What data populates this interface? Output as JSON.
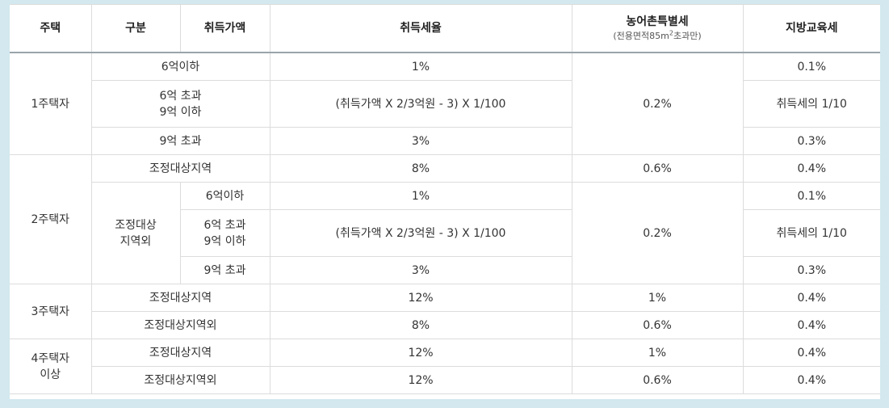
{
  "headers": {
    "house": "주택",
    "category": "구분",
    "price": "취득가액",
    "tax_rate": "취득세율",
    "rural_tax": "농어촌특별세",
    "rural_tax_note_pre": "(전용면적85m",
    "rural_tax_note_sup": "2",
    "rural_tax_note_post": "초과만)",
    "edu_tax": "지방교육세"
  },
  "rows": {
    "h1": {
      "label": "1주택자",
      "r1": {
        "range": "6억이하",
        "rate": "1%",
        "edu": "0.1%"
      },
      "r2": {
        "range_a": "6억 초과",
        "range_b": "9억 이하",
        "rate": "(취득가액 X 2/3억원 - 3) X 1/100",
        "edu": "취득세의 1/10"
      },
      "r3": {
        "range": "9억 초과",
        "rate": "3%",
        "edu": "0.3%"
      },
      "rural": "0.2%"
    },
    "h2": {
      "label": "2주택자",
      "adj": {
        "label": "조정대상지역",
        "rate": "8%",
        "rural": "0.6%",
        "edu": "0.4%"
      },
      "nonadj_label_a": "조정대상",
      "nonadj_label_b": "지역외",
      "r1": {
        "range": "6억이하",
        "rate": "1%",
        "edu": "0.1%"
      },
      "r2": {
        "range_a": "6억 초과",
        "range_b": "9억 이하",
        "rate": "(취득가액 X 2/3억원 - 3) X 1/100",
        "edu": "취득세의 1/10"
      },
      "r3": {
        "range": "9억 초과",
        "rate": "3%",
        "edu": "0.3%"
      },
      "rural": "0.2%"
    },
    "h3": {
      "label": "3주택자",
      "adj": {
        "label": "조정대상지역",
        "rate": "12%",
        "rural": "1%",
        "edu": "0.4%"
      },
      "nonadj": {
        "label": "조정대상지역외",
        "rate": "8%",
        "rural": "0.6%",
        "edu": "0.4%"
      }
    },
    "h4": {
      "label_a": "4주택자",
      "label_b": "이상",
      "adj": {
        "label": "조정대상지역",
        "rate": "12%",
        "rural": "1%",
        "edu": "0.4%"
      },
      "nonadj": {
        "label": "조정대상지역외",
        "rate": "12%",
        "rural": "0.6%",
        "edu": "0.4%"
      }
    }
  }
}
